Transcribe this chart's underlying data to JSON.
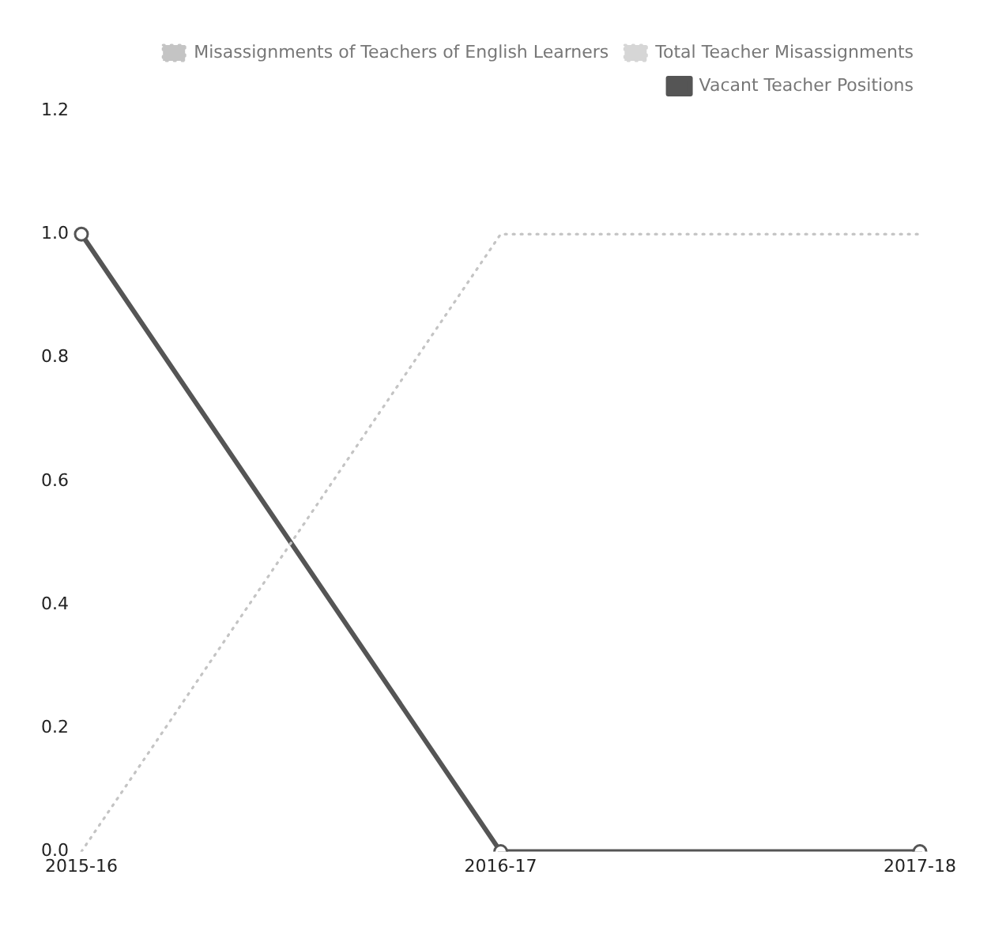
{
  "chart_data": {
    "type": "line",
    "categories": [
      "2015-16",
      "2016-17",
      "2017-18"
    ],
    "series": [
      {
        "name": "Misassignments of Teachers of English Learners",
        "color": "#c4c4c4",
        "values": [
          0,
          1,
          1
        ],
        "line_style": "dotted",
        "marker": "none"
      },
      {
        "name": "Total Teacher Misassignments",
        "color": "#d6d6d6",
        "values": [
          0,
          1,
          1
        ],
        "line_style": "dotted",
        "marker": "none"
      },
      {
        "name": "Vacant Teacher Positions",
        "color": "#555555",
        "values": [
          1,
          0,
          0
        ],
        "line_style": "solid",
        "marker": "circle"
      }
    ],
    "ylim": [
      0,
      1.2
    ],
    "yticks": [
      {
        "value": 0,
        "label": "0.0"
      },
      {
        "value": 0.2,
        "label": "0.2"
      },
      {
        "value": 0.4,
        "label": "0.4"
      },
      {
        "value": 0.6,
        "label": "0.6"
      },
      {
        "value": 0.8,
        "label": "0.8"
      },
      {
        "value": 1,
        "label": "1.0"
      },
      {
        "value": 1.2,
        "label": "1.2"
      }
    ],
    "grid": false,
    "legend": "top right"
  }
}
